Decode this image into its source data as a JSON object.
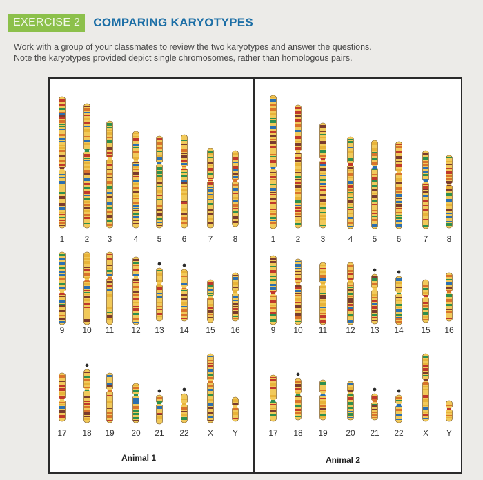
{
  "header": {
    "exercise_label": "EXERCISE 2",
    "title": "COMPARING KARYOTYPES"
  },
  "instructions": {
    "line1": "Work with a group of your classmates to review the two karyotypes and answer the questions.",
    "line2": "Note the karyotypes provided depict single chromosomes, rather than homologous pairs."
  },
  "karyotypes": [
    {
      "label": "Animal 1",
      "rows": [
        [
          "1",
          "2",
          "3",
          "4",
          "5",
          "6",
          "7",
          "8"
        ],
        [
          "9",
          "10",
          "11",
          "12",
          "13",
          "14",
          "15",
          "16"
        ],
        [
          "17",
          "18",
          "19",
          "20",
          "21",
          "22",
          "X",
          "Y"
        ]
      ]
    },
    {
      "label": "Animal 2",
      "rows": [
        [
          "1",
          "2",
          "3",
          "4",
          "5",
          "6",
          "7",
          "8"
        ],
        [
          "9",
          "10",
          "11",
          "12",
          "13",
          "14",
          "15",
          "16"
        ],
        [
          "17",
          "18",
          "19",
          "20",
          "21",
          "22",
          "X",
          "Y"
        ]
      ]
    }
  ],
  "band_colors": [
    "#c0392b",
    "#e8b339",
    "#2c6fb0",
    "#2f8f4e",
    "#7a3b2e",
    "#d9732b"
  ]
}
